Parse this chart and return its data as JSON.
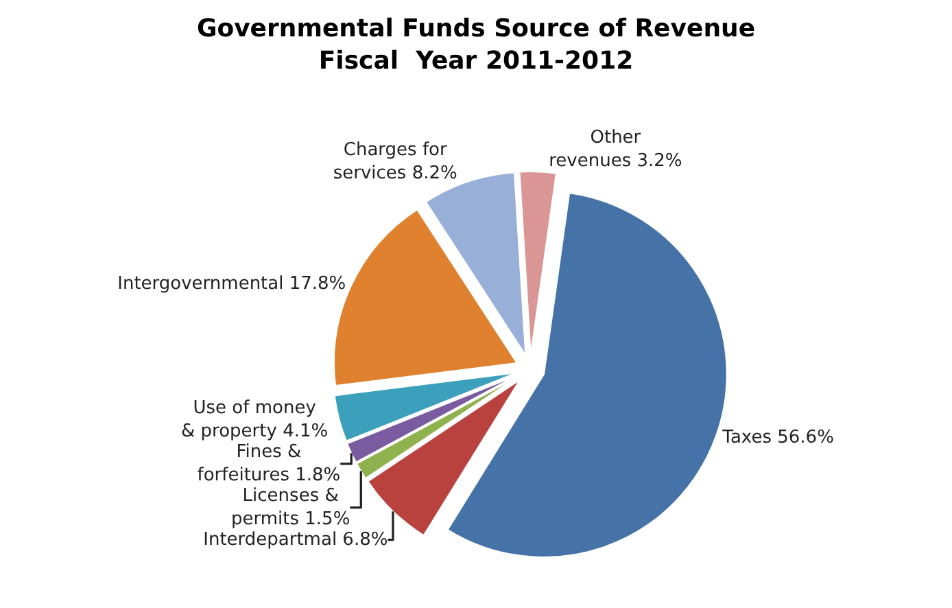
{
  "chart_data": {
    "type": "pie",
    "title": "Governmental Funds Source of Revenue\nFiscal  Year 2011-2012",
    "categories": [
      "Taxes",
      "Interdepartmal",
      "Licenses & permits",
      "Fines & forfeitures",
      "Use of money & property",
      "Intergovernmental",
      "Charges for services",
      "Other revenues"
    ],
    "value_labels": [
      "56.6%",
      "6.8%",
      "1.5%",
      "1.8%",
      "4.1%",
      "17.8%",
      "8.2%",
      "3.2%"
    ],
    "values": [
      56.6,
      6.8,
      1.5,
      1.8,
      4.1,
      17.8,
      8.2,
      3.2
    ],
    "colors": [
      "#4572a7",
      "#b9413e",
      "#8fb24f",
      "#7a5ba0",
      "#3c9fbc",
      "#e0812f",
      "#98b0d8",
      "#d99694"
    ],
    "legend": false
  }
}
